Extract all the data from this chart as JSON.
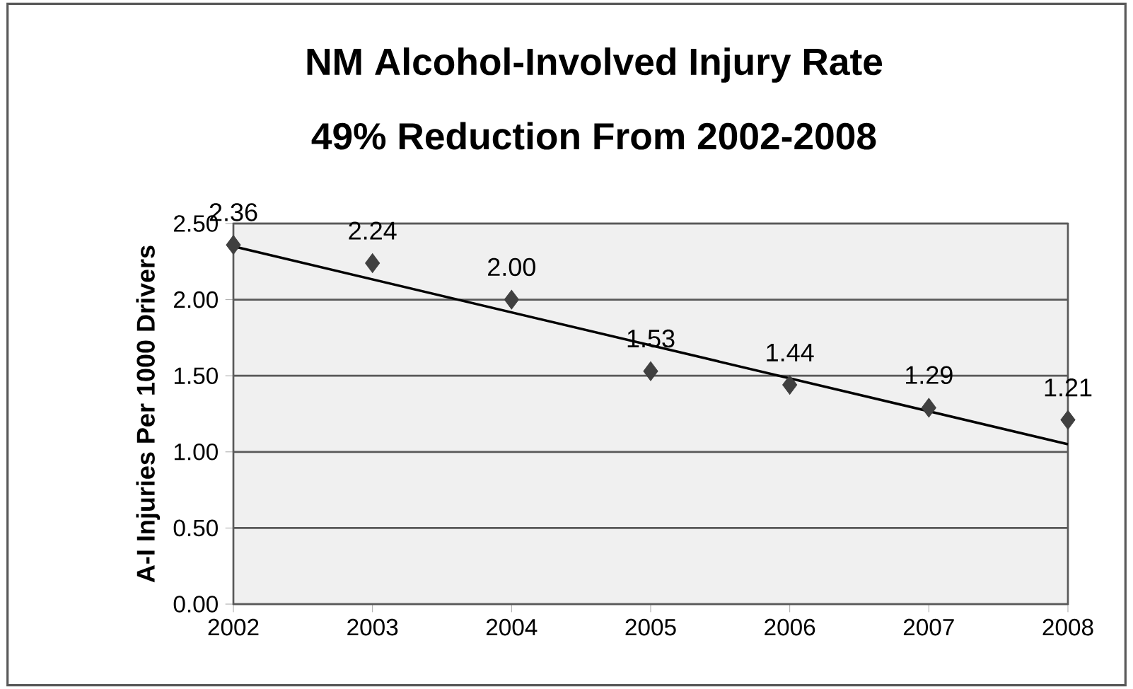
{
  "chart_data": {
    "type": "scatter",
    "title": "NM Alcohol-Involved Injury Rate",
    "subtitle": "49% Reduction From 2002-2008",
    "ylabel": "A-I Injuries Per 1000 Drivers",
    "x": [
      2002,
      2003,
      2004,
      2005,
      2006,
      2007,
      2008
    ],
    "series": [
      {
        "type": "scatter",
        "color": "#404040",
        "marker": "diamond",
        "values": [
          2.36,
          2.24,
          2.0,
          1.53,
          1.44,
          1.29,
          1.21
        ],
        "value_labels": [
          "2.36",
          "2.24",
          "2.00",
          "1.53",
          "1.44",
          "1.29",
          "1.21"
        ]
      },
      {
        "type": "line",
        "color": "#000000",
        "marker": "none",
        "line_style": "solid",
        "x": [
          2002,
          2008
        ],
        "values": [
          2.35,
          1.05
        ]
      }
    ],
    "xlim": [
      2002,
      2008
    ],
    "xticks": [
      2002,
      2003,
      2004,
      2005,
      2006,
      2007,
      2008
    ],
    "ylim": [
      0,
      2.5
    ],
    "yticks": [
      {
        "value": 0,
        "label": "0.00"
      },
      {
        "value": 0.5,
        "label": "0.50"
      },
      {
        "value": 1,
        "label": "1.00"
      },
      {
        "value": 1.5,
        "label": "1.50"
      },
      {
        "value": 2,
        "label": "2.00"
      },
      {
        "value": 2.5,
        "label": "2.50"
      }
    ],
    "grid": "y"
  }
}
